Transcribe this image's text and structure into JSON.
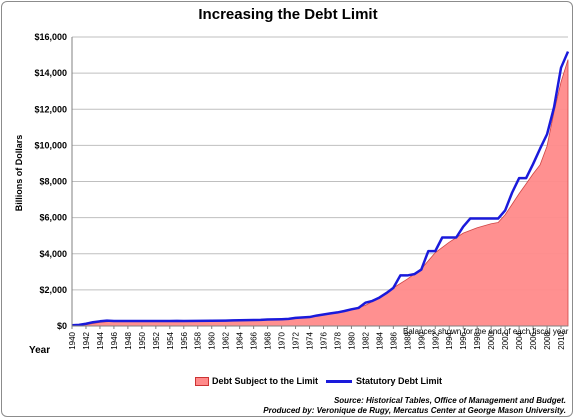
{
  "chart_data": {
    "type": "area",
    "title": "Increasing the Debt Limit",
    "ylabel": "Billions of Dollars",
    "xlabel": "Year",
    "note": "Balances shown for the end of each fiscal year",
    "ylim": [
      0,
      16000
    ],
    "xlim": [
      1940,
      2011
    ],
    "y_ticks": [
      "$0",
      "$2,000",
      "$4,000",
      "$6,000",
      "$8,000",
      "$10,000",
      "$12,000",
      "$14,000",
      "$16,000"
    ],
    "y_tick_values": [
      0,
      2000,
      4000,
      6000,
      8000,
      10000,
      12000,
      14000,
      16000
    ],
    "x_ticks": [
      "1940",
      "1942",
      "1944",
      "1946",
      "1948",
      "1950",
      "1952",
      "1954",
      "1956",
      "1958",
      "1960",
      "1962",
      "1964",
      "1966",
      "1968",
      "1970",
      "1972",
      "1974",
      "1976",
      "1978",
      "1980",
      "1982",
      "1984",
      "1986",
      "1988",
      "1990",
      "1992",
      "1994",
      "1996",
      "1998",
      "2000",
      "2002",
      "2004",
      "2006",
      "2008",
      "2010"
    ],
    "legend": {
      "placement": "bottom"
    },
    "series": [
      {
        "name": "Debt Subject to the Limit",
        "style": "area",
        "color": "#ff8a8a",
        "points": [
          [
            1940,
            43
          ],
          [
            1942,
            70
          ],
          [
            1944,
            200
          ],
          [
            1946,
            270
          ],
          [
            1948,
            250
          ],
          [
            1950,
            255
          ],
          [
            1952,
            260
          ],
          [
            1954,
            270
          ],
          [
            1956,
            272
          ],
          [
            1958,
            280
          ],
          [
            1960,
            290
          ],
          [
            1962,
            300
          ],
          [
            1964,
            310
          ],
          [
            1966,
            325
          ],
          [
            1968,
            350
          ],
          [
            1970,
            375
          ],
          [
            1972,
            430
          ],
          [
            1974,
            480
          ],
          [
            1976,
            620
          ],
          [
            1978,
            770
          ],
          [
            1980,
            900
          ],
          [
            1982,
            1140
          ],
          [
            1984,
            1570
          ],
          [
            1986,
            2110
          ],
          [
            1988,
            2600
          ],
          [
            1990,
            3160
          ],
          [
            1992,
            4060
          ],
          [
            1994,
            4640
          ],
          [
            1996,
            5140
          ],
          [
            1998,
            5440
          ],
          [
            2000,
            5660
          ],
          [
            2001,
            5730
          ],
          [
            2002,
            6160
          ],
          [
            2003,
            6740
          ],
          [
            2004,
            7330
          ],
          [
            2005,
            7870
          ],
          [
            2006,
            8420
          ],
          [
            2007,
            8920
          ],
          [
            2008,
            9960
          ],
          [
            2009,
            11850
          ],
          [
            2010,
            13510
          ],
          [
            2011,
            14750
          ]
        ]
      },
      {
        "name": "Statutory Debt Limit",
        "style": "line",
        "color": "#1a1adb",
        "points": [
          [
            1940,
            45
          ],
          [
            1941,
            65
          ],
          [
            1942,
            125
          ],
          [
            1943,
            210
          ],
          [
            1944,
            260
          ],
          [
            1945,
            300
          ],
          [
            1946,
            275
          ],
          [
            1954,
            275
          ],
          [
            1955,
            281
          ],
          [
            1956,
            278
          ],
          [
            1958,
            283
          ],
          [
            1960,
            293
          ],
          [
            1962,
            300
          ],
          [
            1963,
            309
          ],
          [
            1965,
            324
          ],
          [
            1966,
            330
          ],
          [
            1967,
            336
          ],
          [
            1968,
            358
          ],
          [
            1970,
            377
          ],
          [
            1971,
            395
          ],
          [
            1972,
            450
          ],
          [
            1974,
            495
          ],
          [
            1975,
            577
          ],
          [
            1976,
            636
          ],
          [
            1977,
            700
          ],
          [
            1978,
            752
          ],
          [
            1979,
            830
          ],
          [
            1980,
            925
          ],
          [
            1981,
            999
          ],
          [
            1982,
            1290
          ],
          [
            1983,
            1389
          ],
          [
            1984,
            1573
          ],
          [
            1985,
            1823
          ],
          [
            1986,
            2111
          ],
          [
            1987,
            2800
          ],
          [
            1988,
            2800
          ],
          [
            1989,
            2870
          ],
          [
            1990,
            3123
          ],
          [
            1991,
            4145
          ],
          [
            1992,
            4145
          ],
          [
            1993,
            4900
          ],
          [
            1994,
            4900
          ],
          [
            1995,
            4900
          ],
          [
            1996,
            5500
          ],
          [
            1997,
            5950
          ],
          [
            1998,
            5950
          ],
          [
            1999,
            5950
          ],
          [
            2000,
            5950
          ],
          [
            2001,
            5950
          ],
          [
            2002,
            6400
          ],
          [
            2003,
            7384
          ],
          [
            2004,
            8184
          ],
          [
            2005,
            8184
          ],
          [
            2006,
            8965
          ],
          [
            2007,
            9815
          ],
          [
            2008,
            10615
          ],
          [
            2009,
            12104
          ],
          [
            2010,
            14294
          ],
          [
            2011,
            15194
          ]
        ]
      }
    ]
  },
  "footer": {
    "source": "Source: Historical Tables, Office of Management and Budget.",
    "produced_by": "Produced by: Veronique de Rugy, Mercatus Center at George Mason University."
  }
}
